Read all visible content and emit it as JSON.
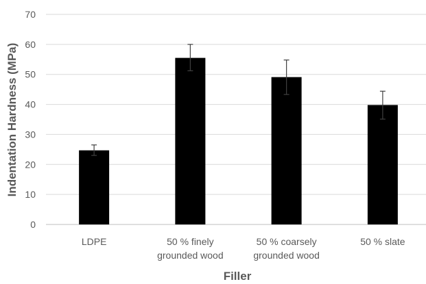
{
  "chart_data": {
    "type": "bar",
    "title": "",
    "xlabel": "Filler",
    "ylabel": "Indentation Hardness (MPa)",
    "categories": [
      [
        "LDPE"
      ],
      [
        "50 % finely",
        "grounded wood"
      ],
      [
        "50 % coarsely",
        "grounded wood"
      ],
      [
        "50 % slate"
      ]
    ],
    "values": [
      24.7,
      55.5,
      49.1,
      39.8
    ],
    "error_bars": [
      [
        23.0,
        26.5
      ],
      [
        51.2,
        60.0
      ],
      [
        43.3,
        54.8
      ],
      [
        35.1,
        44.4
      ]
    ],
    "ylim": [
      0,
      70
    ],
    "yticks": [
      "0",
      "10",
      "20",
      "30",
      "40",
      "50",
      "60",
      "70"
    ],
    "grid": true,
    "legend": "none",
    "colors": {
      "bar": "#000000",
      "grid": "#d9d9d9",
      "axis": "#bfbfbf",
      "text": "#595959",
      "error_bar": "#404040"
    }
  }
}
